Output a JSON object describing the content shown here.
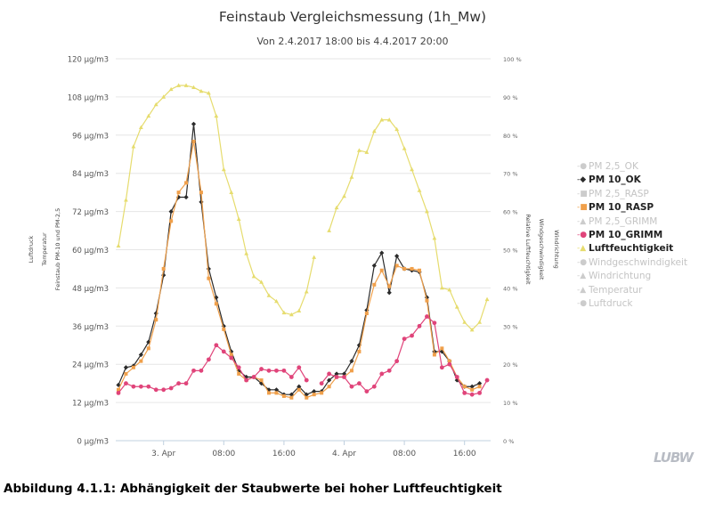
{
  "chart_data": {
    "type": "line",
    "title": "Feinstaub Vergleichsmessung (1h_Mw)",
    "subtitle": "Von 2.4.2017 18:00 bis 4.4.2017 20:00",
    "x_tick_labels": [
      "3. Apr",
      "08:00",
      "16:00",
      "4. Apr",
      "08:00",
      "16:00"
    ],
    "x_tick_hours": [
      6,
      14,
      22,
      30,
      38,
      46
    ],
    "x_range_hours": [
      0,
      50
    ],
    "x_note": "hours from 2.4.2017 18:00",
    "y_left": {
      "range": [
        0,
        120
      ],
      "ticks": [
        "0 µg/m3",
        "12 µg/m3",
        "24 µg/m3",
        "36 µg/m3",
        "48 µg/m3",
        "60 µg/m3",
        "72 µg/m3",
        "84 µg/m3",
        "96 µg/m3",
        "108 µg/m3",
        "120 µg/m3"
      ],
      "labels": [
        "Feinstaub PM-10 und PM-2,5",
        "Temperatur",
        "Luftdruck"
      ]
    },
    "y_right": {
      "range": [
        0,
        100
      ],
      "ticks": [
        "0 %",
        "10 %",
        "20 %",
        "30 %",
        "40 %",
        "50 %",
        "60 %",
        "70 %",
        "80 %",
        "90 %",
        "100 %"
      ],
      "labels": [
        "Relative Luftfeuchtigkeit",
        "Windgeschwindigkeit",
        "Windrichtung"
      ]
    },
    "legend": [
      {
        "name": "PM 2,5_OK",
        "active": false,
        "symbol": "circle"
      },
      {
        "name": "PM 10_OK",
        "active": true,
        "symbol": "diamond",
        "color": "#2b2b2b"
      },
      {
        "name": "PM 2,5_RASP",
        "active": false,
        "symbol": "square"
      },
      {
        "name": "PM 10_RASP",
        "active": true,
        "symbol": "square",
        "color": "#f0a04b"
      },
      {
        "name": "PM 2,5_GRIMM",
        "active": false,
        "symbol": "triangle"
      },
      {
        "name": "PM 10_GRIMM",
        "active": true,
        "symbol": "circle",
        "color": "#e0447a"
      },
      {
        "name": "Luftfeuchtigkeit",
        "active": true,
        "symbol": "triangle",
        "color": "#e6dc6e"
      },
      {
        "name": "Windgeschwindigkeit",
        "active": false,
        "symbol": "circle"
      },
      {
        "name": "Windrichtung",
        "active": false,
        "symbol": "triangle"
      },
      {
        "name": "Temperatur",
        "active": false,
        "symbol": "triangle"
      },
      {
        "name": "Luftdruck",
        "active": false,
        "symbol": "circle"
      }
    ],
    "legend_position": "right",
    "grid": true,
    "series": [
      {
        "name": "PM 10_OK",
        "axis": "left",
        "color": "#2b2b2b",
        "marker": "diamond",
        "values": [
          17.5,
          23,
          23.5,
          27,
          31,
          40,
          52,
          72,
          76.5,
          76.5,
          99.5,
          75,
          54,
          45,
          36,
          28,
          22,
          20,
          20,
          18,
          16,
          16,
          14.5,
          14.5,
          17,
          14.5,
          15.5,
          15.5,
          19,
          21,
          21,
          25,
          30,
          41,
          55,
          59,
          46.5,
          58,
          54,
          53.5,
          53,
          45,
          28,
          28,
          25,
          19,
          17,
          17,
          18
        ]
      },
      {
        "name": "PM 10_RASP",
        "axis": "left",
        "color": "#f0a04b",
        "marker": "square",
        "values": [
          16,
          21,
          23,
          25,
          29,
          38,
          54,
          69,
          78,
          81,
          94,
          78,
          51,
          43,
          35,
          27,
          21,
          19,
          20,
          19,
          15,
          15,
          14,
          13.5,
          16,
          13.5,
          14.5,
          15,
          17,
          20,
          20,
          22,
          28,
          40,
          49,
          53.5,
          48.5,
          55,
          54,
          54,
          53.5,
          44,
          27,
          29,
          25,
          20,
          17,
          16,
          17
        ]
      },
      {
        "name": "PM 10_GRIMM",
        "axis": "left",
        "color": "#e0447a",
        "marker": "circle",
        "values": [
          15,
          18,
          17,
          17,
          17,
          16,
          16,
          16.5,
          18,
          18,
          22,
          22,
          25.5,
          30,
          28,
          26,
          23,
          19,
          20,
          22.5,
          22,
          22,
          22,
          20,
          23,
          19,
          null,
          18,
          21,
          20,
          20,
          17,
          18,
          15.5,
          17,
          21,
          22,
          25,
          32,
          33,
          36,
          39,
          37,
          23,
          24,
          20,
          15,
          14.5,
          15,
          19
        ]
      },
      {
        "name": "Luftfeuchtigkeit",
        "axis": "right",
        "color": "#e6dc6e",
        "marker": "triangle",
        "values": [
          51,
          63,
          77,
          82,
          85,
          88,
          90,
          92,
          93,
          93,
          92.5,
          91.5,
          91,
          85,
          71,
          65,
          58,
          49,
          43,
          41.5,
          38,
          36.5,
          33.5,
          33,
          34,
          39,
          48,
          null,
          55,
          61,
          64,
          69,
          76,
          75.5,
          81,
          84,
          84,
          81.5,
          76.5,
          71,
          65.5,
          60,
          53,
          40,
          39.5,
          35,
          31,
          29,
          31,
          37
        ]
      }
    ]
  },
  "caption": "Abbildung 4.1.1: Abhängigkeit der Staubwerte bei hoher Luftfeuchtigkeit",
  "logo_text": "LUBW"
}
